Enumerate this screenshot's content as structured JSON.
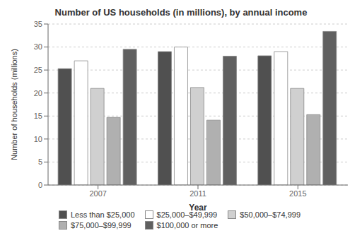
{
  "chart_data": {
    "type": "bar",
    "title": "Number of US households (in millions), by annual income",
    "xlabel": "Year",
    "ylabel": "Number of households (millions)",
    "categories": [
      "2007",
      "2011",
      "2015"
    ],
    "series": [
      {
        "name": "Less than $25,000",
        "color": "#505050",
        "values": [
          25.3,
          29.0,
          28.1
        ]
      },
      {
        "name": "$25,000–$49,999",
        "color": "#ffffff",
        "values": [
          27.0,
          30.0,
          29.0
        ]
      },
      {
        "name": "$50,000–$74,999",
        "color": "#d0d0d0",
        "values": [
          21.0,
          21.2,
          21.0
        ]
      },
      {
        "name": "$75,000–$99,999",
        "color": "#b0b0b0",
        "values": [
          14.7,
          14.1,
          15.3
        ]
      },
      {
        "name": "$100,000 or more",
        "color": "#606060",
        "values": [
          29.5,
          28.0,
          33.4
        ]
      }
    ],
    "ylim": [
      0,
      35
    ],
    "yticks": [
      0,
      5,
      10,
      15,
      20,
      25,
      30,
      35
    ],
    "grid": true,
    "legend": "bottom"
  }
}
